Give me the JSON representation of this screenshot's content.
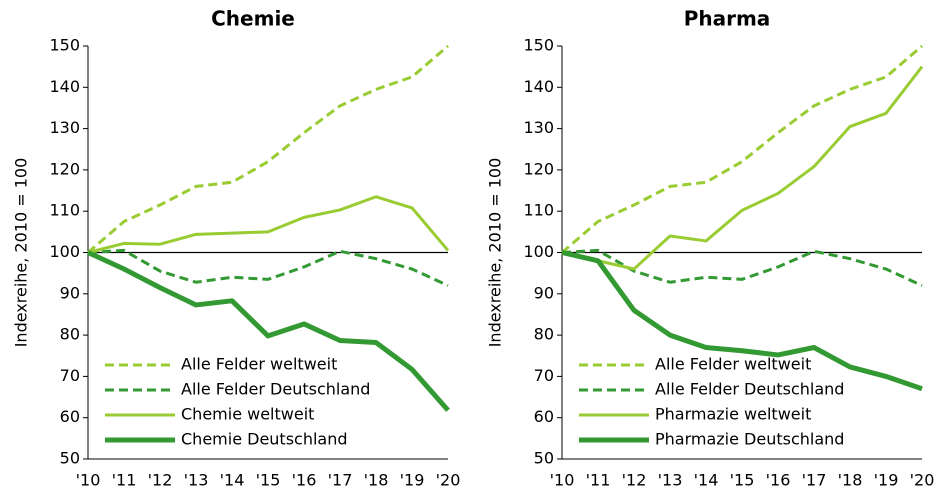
{
  "chart_data": [
    {
      "type": "line",
      "title": "Chemie",
      "y_label": "Indexreihe, 2010 = 100",
      "categories": [
        "'10",
        "'11",
        "'12",
        "'13",
        "'14",
        "'15",
        "'16",
        "'17",
        "'18",
        "'19",
        "'20"
      ],
      "ylim": [
        50,
        150
      ],
      "yticks": [
        50,
        60,
        70,
        80,
        90,
        100,
        110,
        120,
        130,
        140,
        150
      ],
      "reference_line": 100,
      "legend": "lower left",
      "series": [
        {
          "name": "Alle Felder weltweit",
          "color": "#99cc33",
          "line_style": "dashed",
          "line_width": 3,
          "values": [
            100,
            107.5,
            111.5,
            116,
            117,
            122,
            129,
            135.5,
            139.5,
            142.5,
            150
          ]
        },
        {
          "name": "Alle Felder Deutschland",
          "color": "#339933",
          "line_style": "dashed",
          "line_width": 3,
          "values": [
            100,
            100.5,
            95.5,
            92.8,
            94,
            93.5,
            96.5,
            100.3,
            98.5,
            96,
            92
          ]
        },
        {
          "name": "Chemie weltweit",
          "color": "#99cc33",
          "line_style": "solid",
          "line_width": 3,
          "values": [
            100,
            102.2,
            102,
            104.4,
            104.7,
            105,
            108.5,
            110.3,
            113.5,
            110.8,
            100.5
          ]
        },
        {
          "name": "Chemie Deutschland",
          "color": "#339933",
          "line_style": "solid",
          "line_width": 5,
          "values": [
            100,
            96,
            91.5,
            87.3,
            88.3,
            79.8,
            82.7,
            78.7,
            78.2,
            71.7,
            61.8
          ]
        }
      ]
    },
    {
      "type": "line",
      "title": "Pharma",
      "y_label": "Indexreihe, 2010 = 100",
      "categories": [
        "'10",
        "'11",
        "'12",
        "'13",
        "'14",
        "'15",
        "'16",
        "'17",
        "'18",
        "'19",
        "'20"
      ],
      "ylim": [
        50,
        150
      ],
      "yticks": [
        50,
        60,
        70,
        80,
        90,
        100,
        110,
        120,
        130,
        140,
        150
      ],
      "reference_line": 100,
      "legend": "lower left",
      "series": [
        {
          "name": "Alle Felder weltweit",
          "color": "#99cc33",
          "line_style": "dashed",
          "line_width": 3,
          "values": [
            100,
            107.5,
            111.5,
            116,
            117,
            122,
            129,
            135.5,
            139.5,
            142.5,
            150
          ]
        },
        {
          "name": "Alle Felder Deutschland",
          "color": "#339933",
          "line_style": "dashed",
          "line_width": 3,
          "values": [
            100,
            100.5,
            95.5,
            92.8,
            94,
            93.5,
            96.5,
            100.3,
            98.5,
            96,
            92
          ]
        },
        {
          "name": "Pharmazie weltweit",
          "color": "#99cc33",
          "line_style": "solid",
          "line_width": 3,
          "values": [
            100,
            98,
            96,
            104,
            102.8,
            110.2,
            114.3,
            120.8,
            130.5,
            133.7,
            145
          ]
        },
        {
          "name": "Pharmazie Deutschland",
          "color": "#339933",
          "line_style": "solid",
          "line_width": 5,
          "values": [
            100,
            98,
            86,
            80,
            77,
            76.2,
            75.2,
            77,
            72.3,
            70,
            67
          ]
        }
      ]
    }
  ]
}
